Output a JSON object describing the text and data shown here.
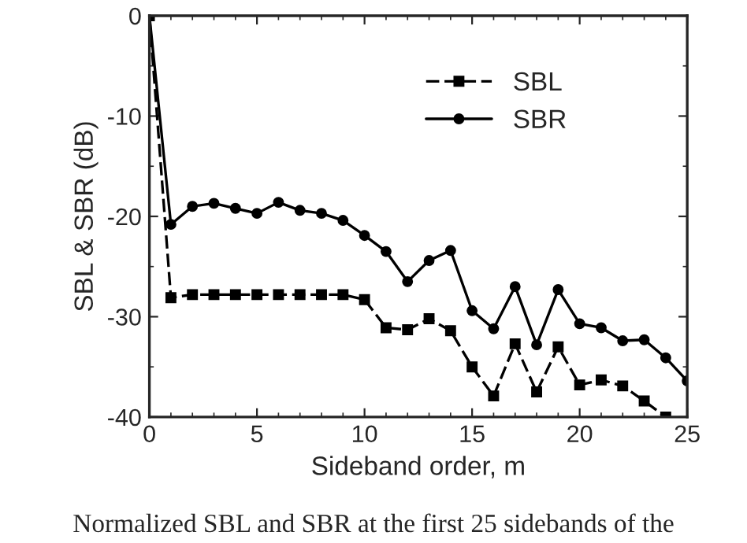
{
  "chart_data": {
    "type": "line",
    "xlabel": "Sideband order, m",
    "ylabel": "SBL & SBR (dB)",
    "x": [
      0,
      1,
      2,
      3,
      4,
      5,
      6,
      7,
      8,
      9,
      10,
      11,
      12,
      13,
      14,
      15,
      16,
      17,
      18,
      19,
      20,
      21,
      22,
      23,
      24,
      25
    ],
    "series": [
      {
        "name": "SBL",
        "color": "#000000",
        "marker": "square",
        "line_style": "dashed",
        "values": [
          0,
          -28.1,
          -27.8,
          -27.8,
          -27.8,
          -27.8,
          -27.8,
          -27.8,
          -27.8,
          -27.8,
          -28.3,
          -31.1,
          -31.3,
          -30.2,
          -31.4,
          -35.0,
          -37.9,
          -32.7,
          -37.5,
          -33.0,
          -36.8,
          -36.3,
          -36.9,
          -38.4,
          -40.0,
          null
        ]
      },
      {
        "name": "SBR",
        "color": "#000000",
        "marker": "circle",
        "line_style": "solid",
        "values": [
          0,
          -20.8,
          -19.0,
          -18.7,
          -19.2,
          -19.7,
          -18.6,
          -19.4,
          -19.7,
          -20.4,
          -21.9,
          -23.5,
          -26.5,
          -24.4,
          -23.4,
          -29.4,
          -31.2,
          -27.0,
          -32.8,
          -27.3,
          -30.7,
          -31.1,
          -32.4,
          -32.3,
          -34.1,
          -36.4
        ]
      }
    ],
    "xlim": [
      0,
      25
    ],
    "xticks": [
      0,
      5,
      10,
      15,
      20,
      25
    ],
    "ylim": [
      -40,
      0
    ],
    "yticks": [
      -40,
      -30,
      -20,
      -10,
      0
    ],
    "grid": false,
    "legend": "top right",
    "annotations": [
      "Normalized SBL and SBR at the first 25 sidebands of the"
    ]
  }
}
